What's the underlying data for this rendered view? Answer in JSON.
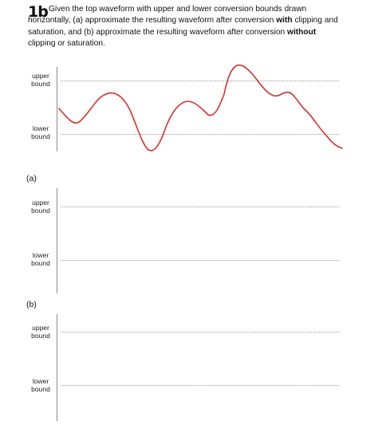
{
  "problem": {
    "number": "1b",
    "lines": [
      [
        "Given the top waveform with upper and lower conversion bounds drawn"
      ],
      [
        "horizontally, (a) approximate the resulting waveform after conversion ",
        "with",
        " clipping and"
      ],
      [
        "saturation, and (b) approximate the resulting waveform after conversion ",
        "without"
      ],
      [
        "clipping or saturation."
      ]
    ]
  },
  "labels": {
    "upper_bound": "upper bound",
    "lower_bound": "lower bound"
  },
  "parts": {
    "a": "(a)",
    "b": "(b)"
  },
  "colors": {
    "waveform": "#d9302c",
    "axis": "#8a8a8a",
    "bound_line": "#9a9a9a"
  }
}
